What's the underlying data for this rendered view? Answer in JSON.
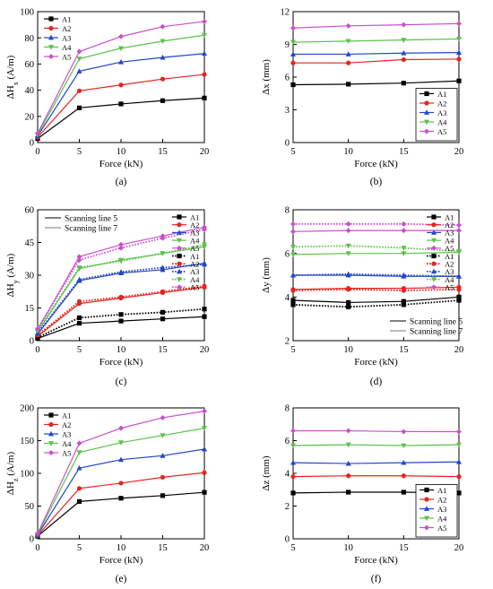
{
  "colors": {
    "A1": "#000000",
    "A2": "#e8231d",
    "A3": "#2346c8",
    "A4": "#5cc24a",
    "A5": "#c94fc8"
  },
  "chart_data": [
    {
      "panel": "a",
      "caption": "(a)",
      "type": "line",
      "xlabel": "Force (kN)",
      "ylabel_main": "ΔH",
      "ylabel_sub": "x",
      "ylabel_unit": " (A/m)",
      "xlim": [
        0,
        20
      ],
      "ylim": [
        0,
        100
      ],
      "xticks": [
        0,
        5,
        10,
        15,
        20
      ],
      "yticks": [
        0,
        20,
        40,
        60,
        80,
        100
      ],
      "legend_position": "top-left",
      "x": [
        0,
        5,
        10,
        15,
        20
      ],
      "series": [
        {
          "name": "A1",
          "values": [
            3,
            26.5,
            29.5,
            32,
            34
          ]
        },
        {
          "name": "A2",
          "values": [
            4,
            39.5,
            44,
            48.5,
            52
          ]
        },
        {
          "name": "A3",
          "values": [
            5,
            54.5,
            61.5,
            65,
            68
          ]
        },
        {
          "name": "A4",
          "values": [
            6,
            64,
            72,
            77.5,
            82
          ]
        },
        {
          "name": "A5",
          "values": [
            7,
            69.5,
            81,
            88.5,
            92.5
          ]
        }
      ]
    },
    {
      "panel": "b",
      "caption": "(b)",
      "type": "line",
      "xlabel": "Force (kN)",
      "ylabel_main": "Δx",
      "ylabel_sub": "",
      "ylabel_unit": " (mm)",
      "xlim": [
        5,
        20
      ],
      "ylim": [
        0,
        12
      ],
      "xticks": [
        5,
        10,
        15,
        20
      ],
      "yticks": [
        0,
        3,
        6,
        9,
        12
      ],
      "legend_position": "bottom-right",
      "x": [
        5,
        10,
        15,
        20
      ],
      "series": [
        {
          "name": "A1",
          "values": [
            5.3,
            5.35,
            5.45,
            5.65
          ]
        },
        {
          "name": "A2",
          "values": [
            7.3,
            7.3,
            7.6,
            7.65
          ]
        },
        {
          "name": "A3",
          "values": [
            8.1,
            8.1,
            8.2,
            8.25
          ]
        },
        {
          "name": "A4",
          "values": [
            9.2,
            9.3,
            9.4,
            9.5
          ]
        },
        {
          "name": "A5",
          "values": [
            10.5,
            10.7,
            10.8,
            10.9
          ]
        }
      ]
    },
    {
      "panel": "c",
      "caption": "(c)",
      "type": "line",
      "xlabel": "Force (kN)",
      "ylabel_main": "ΔH",
      "ylabel_sub": "y",
      "ylabel_unit": " (A/m)",
      "xlim": [
        0,
        20
      ],
      "ylim": [
        0,
        60
      ],
      "xticks": [
        0,
        5,
        10,
        15,
        20
      ],
      "yticks": [
        0,
        15,
        30,
        45,
        60
      ],
      "legend_position": "right",
      "style_legend": [
        "Scanning line 5",
        "Scanning line 7"
      ],
      "x": [
        0,
        5,
        10,
        15,
        20
      ],
      "series": [
        {
          "name": "A1",
          "line": "solid",
          "values": [
            1,
            8,
            9,
            10,
            11
          ]
        },
        {
          "name": "A2",
          "line": "solid",
          "values": [
            2,
            17,
            19.5,
            22,
            24.5
          ]
        },
        {
          "name": "A3",
          "line": "solid",
          "values": [
            3,
            27.5,
            31,
            32.5,
            35.5
          ]
        },
        {
          "name": "A4",
          "line": "solid",
          "values": [
            4,
            33,
            37,
            40,
            43
          ]
        },
        {
          "name": "A5",
          "line": "solid",
          "values": [
            5,
            38.5,
            44,
            48,
            52
          ]
        },
        {
          "name": "A1",
          "line": "dotted",
          "values": [
            1.5,
            10.5,
            12,
            13,
            14.5
          ]
        },
        {
          "name": "A2",
          "line": "dotted",
          "values": [
            2.5,
            18,
            20,
            22.5,
            25
          ]
        },
        {
          "name": "A3",
          "line": "dotted",
          "values": [
            3.5,
            28,
            31.5,
            33.5,
            35
          ]
        },
        {
          "name": "A4",
          "line": "dotted",
          "values": [
            4.5,
            33.5,
            36.5,
            40,
            44
          ]
        },
        {
          "name": "A5",
          "line": "dotted",
          "values": [
            5.5,
            37,
            42.5,
            47,
            51
          ]
        }
      ]
    },
    {
      "panel": "d",
      "caption": "(d)",
      "type": "line",
      "xlabel": "Force (kN)",
      "ylabel_main": "Δy",
      "ylabel_sub": "",
      "ylabel_unit": " (mm)",
      "xlim": [
        5,
        20
      ],
      "ylim": [
        2,
        8
      ],
      "xticks": [
        5,
        10,
        15,
        20
      ],
      "yticks": [
        2,
        4,
        6,
        8
      ],
      "legend_position": "right",
      "style_legend": [
        "Scanning line 5",
        "Scanning line 7"
      ],
      "x": [
        5,
        10,
        15,
        20
      ],
      "series": [
        {
          "name": "A1",
          "line": "solid",
          "values": [
            3.85,
            3.75,
            3.8,
            4.0
          ]
        },
        {
          "name": "A2",
          "line": "solid",
          "values": [
            4.35,
            4.4,
            4.4,
            4.45
          ]
        },
        {
          "name": "A3",
          "line": "solid",
          "values": [
            5.0,
            5.0,
            4.95,
            4.95
          ]
        },
        {
          "name": "A4",
          "line": "solid",
          "values": [
            5.95,
            6.0,
            6.0,
            6.05
          ]
        },
        {
          "name": "A5",
          "line": "solid",
          "values": [
            7.0,
            7.05,
            7.05,
            7.05
          ]
        },
        {
          "name": "A1",
          "line": "dotted",
          "values": [
            3.65,
            3.55,
            3.65,
            3.85
          ]
        },
        {
          "name": "A2",
          "line": "dotted",
          "values": [
            4.3,
            4.35,
            4.3,
            4.35
          ]
        },
        {
          "name": "A3",
          "line": "dotted",
          "values": [
            5.0,
            5.05,
            5.0,
            4.95
          ]
        },
        {
          "name": "A4",
          "line": "dotted",
          "values": [
            6.3,
            6.35,
            6.25,
            6.1
          ]
        },
        {
          "name": "A5",
          "line": "dotted",
          "values": [
            7.35,
            7.35,
            7.35,
            7.3
          ]
        }
      ]
    },
    {
      "panel": "e",
      "caption": "(e)",
      "type": "line",
      "xlabel": "Force (kN)",
      "ylabel_main": "ΔH",
      "ylabel_sub": "z",
      "ylabel_unit": " (A/m)",
      "xlim": [
        0,
        20
      ],
      "ylim": [
        0,
        200
      ],
      "xticks": [
        0,
        5,
        10,
        15,
        20
      ],
      "yticks": [
        0,
        50,
        100,
        150,
        200
      ],
      "legend_position": "top-left",
      "x": [
        0,
        5,
        10,
        15,
        20
      ],
      "series": [
        {
          "name": "A1",
          "values": [
            4,
            57,
            62,
            66,
            71
          ]
        },
        {
          "name": "A2",
          "values": [
            5,
            77,
            85,
            94,
            101
          ]
        },
        {
          "name": "A3",
          "values": [
            6,
            108,
            121,
            127,
            137
          ]
        },
        {
          "name": "A4",
          "values": [
            7,
            132,
            147,
            158,
            169
          ]
        },
        {
          "name": "A5",
          "values": [
            8,
            146,
            169,
            185,
            195
          ]
        }
      ]
    },
    {
      "panel": "f",
      "caption": "(f)",
      "type": "line",
      "xlabel": "Force (kN)",
      "ylabel_main": "Δz",
      "ylabel_sub": "",
      "ylabel_unit": " (mm)",
      "xlim": [
        5,
        20
      ],
      "ylim": [
        0,
        8
      ],
      "xticks": [
        5,
        10,
        15,
        20
      ],
      "yticks": [
        0,
        2,
        4,
        6,
        8
      ],
      "legend_position": "bottom-right",
      "x": [
        5,
        10,
        15,
        20
      ],
      "series": [
        {
          "name": "A1",
          "values": [
            2.8,
            2.85,
            2.85,
            2.8
          ]
        },
        {
          "name": "A2",
          "values": [
            3.8,
            3.85,
            3.85,
            3.8
          ]
        },
        {
          "name": "A3",
          "values": [
            4.65,
            4.6,
            4.65,
            4.7
          ]
        },
        {
          "name": "A4",
          "values": [
            5.7,
            5.75,
            5.7,
            5.75
          ]
        },
        {
          "name": "A5",
          "values": [
            6.6,
            6.6,
            6.55,
            6.55
          ]
        }
      ]
    }
  ]
}
